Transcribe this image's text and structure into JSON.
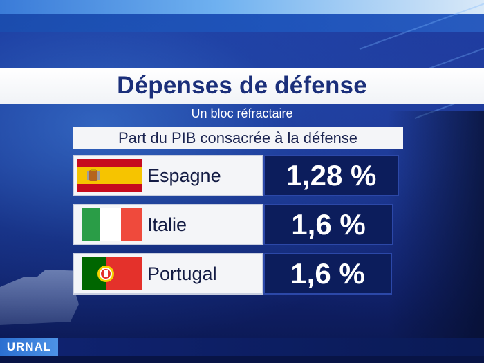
{
  "header": {
    "title": "Dépenses de défense",
    "subtitle": "Un bloc réfractaire"
  },
  "table": {
    "caption": "Part du PIB consacrée à la défense",
    "rows": [
      {
        "country": "Espagne",
        "value": "1,28 %",
        "flag": "spain-flag"
      },
      {
        "country": "Italie",
        "value": "1,6 %",
        "flag": "italy-flag"
      },
      {
        "country": "Portugal",
        "value": "1,6 %",
        "flag": "portugal-flag"
      }
    ]
  },
  "ticker": {
    "label": "URNAL"
  },
  "colors": {
    "title_text": "#1b2f7a",
    "panel_dark": "#0c1d5c",
    "panel_light": "#f4f5f8",
    "spain_red": "#c60b1e",
    "spain_yellow": "#f6c400",
    "italy_green": "#2a9d47",
    "italy_red": "#ef4a3c",
    "portugal_green": "#006600",
    "portugal_red": "#e4312b"
  }
}
